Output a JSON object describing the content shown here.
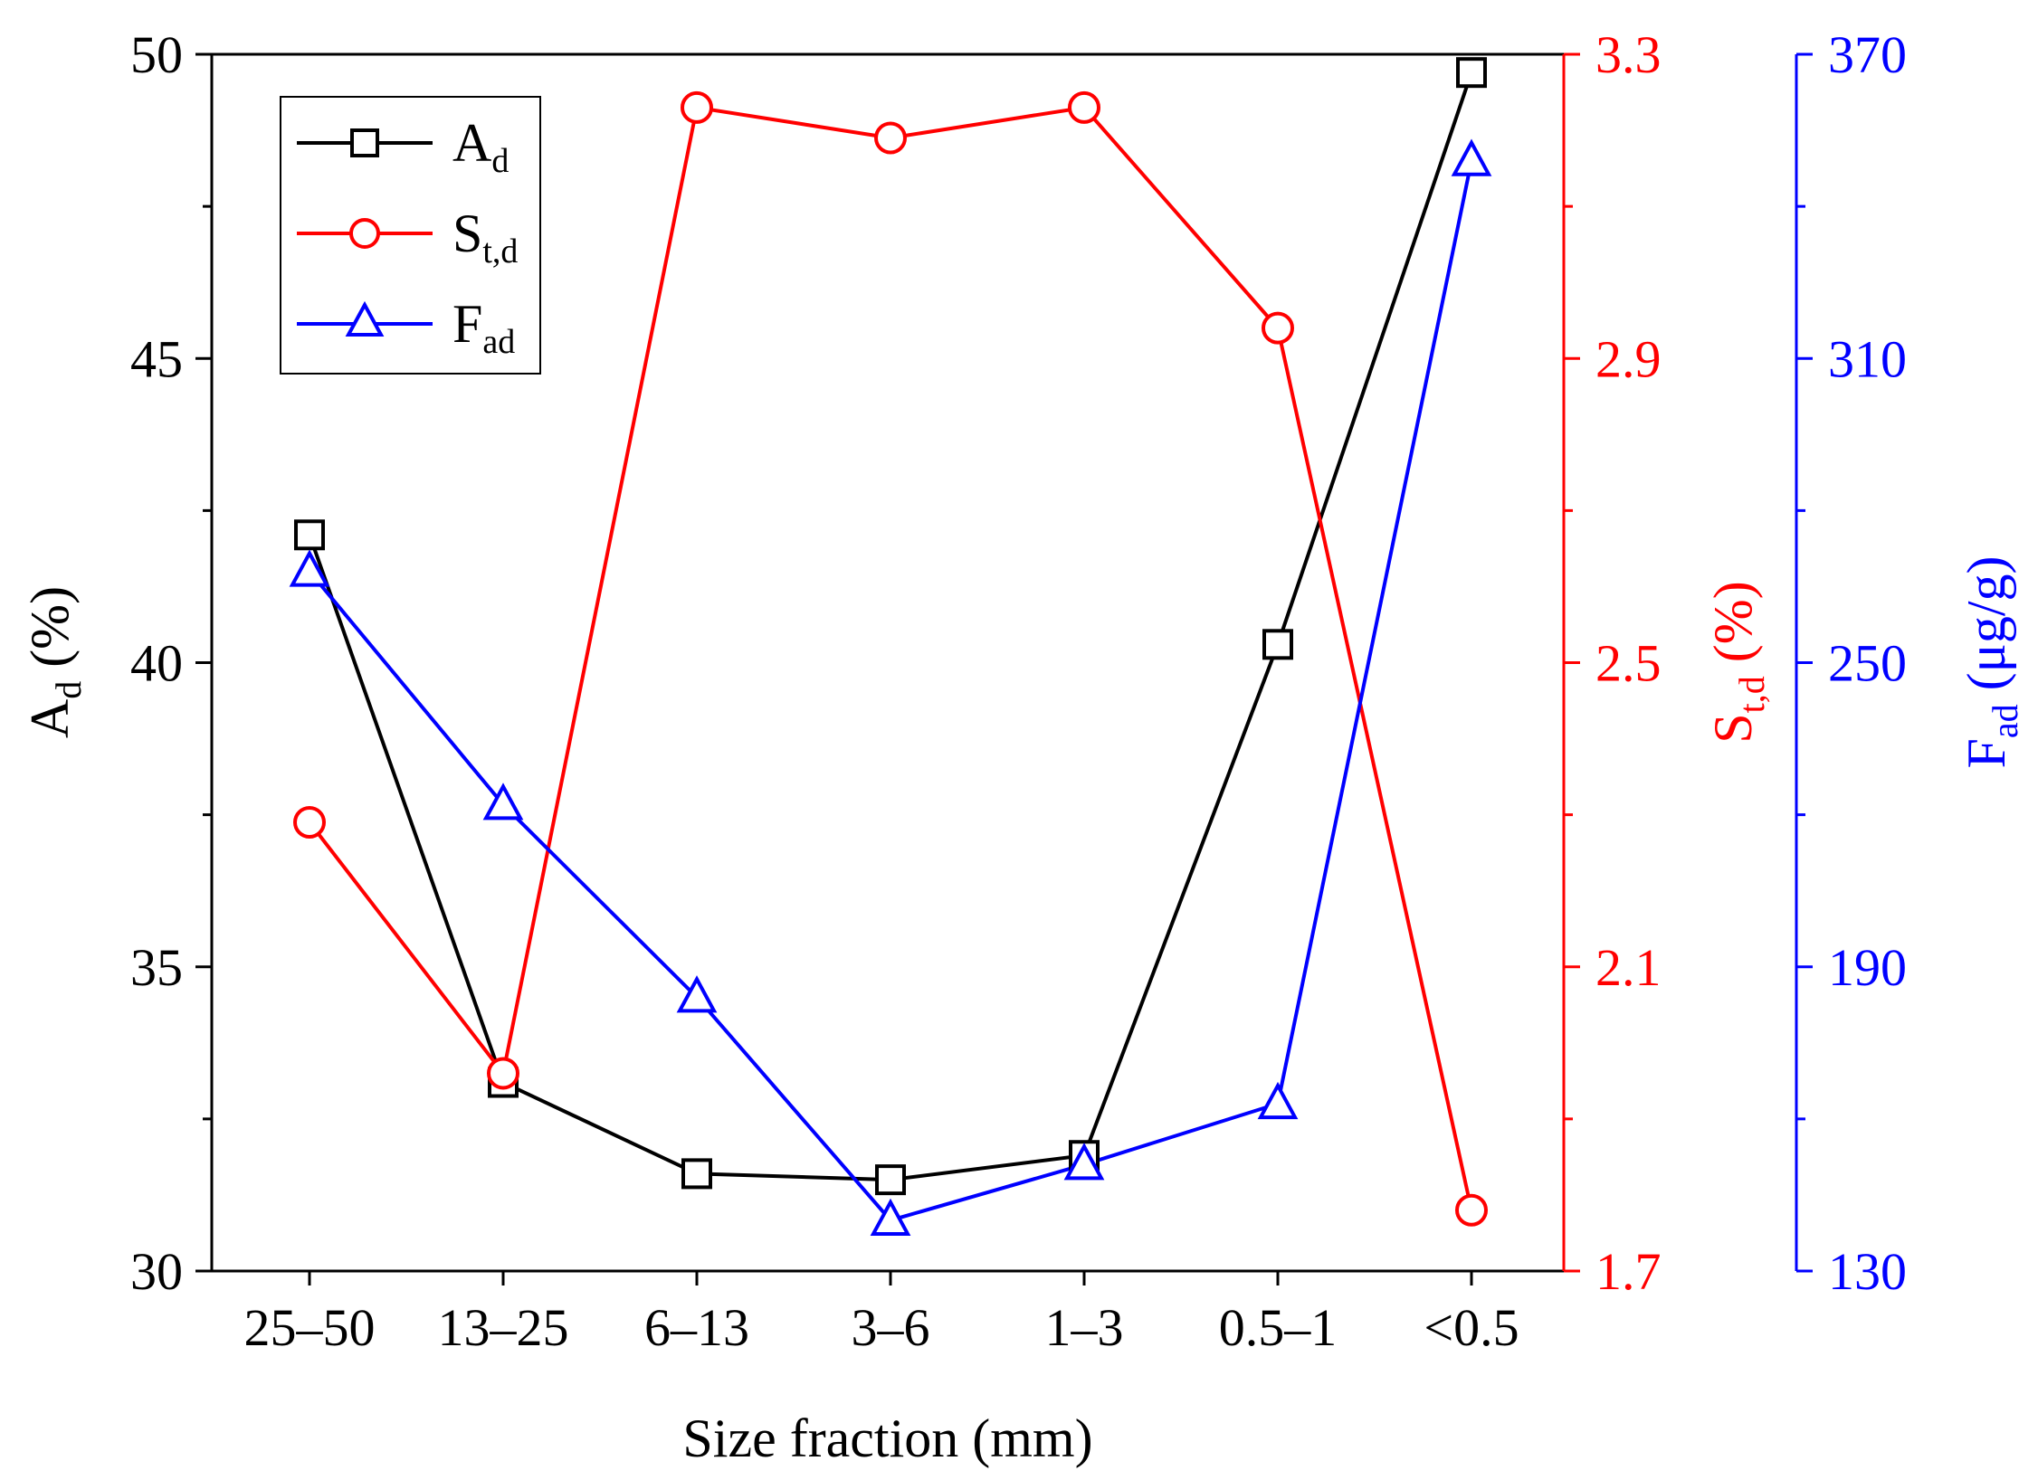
{
  "chart_data": {
    "type": "line",
    "xlabel": "Size fraction (mm)",
    "categories": [
      "25–50",
      "13–25",
      "6–13",
      "3–6",
      "1–3",
      "0.5–1",
      "<0.5"
    ],
    "axes": {
      "left": {
        "label_main": "A",
        "label_sub": "d",
        "label_unit": " (%)",
        "range": [
          30,
          50
        ],
        "ticks": [
          30,
          35,
          40,
          45,
          50
        ],
        "tick_labels": [
          "30",
          "35",
          "40",
          "45",
          "50"
        ],
        "color": "#000000"
      },
      "right1": {
        "label_main": "S",
        "label_sub": "t,d",
        "label_unit": " (%)",
        "range": [
          1.7,
          3.3
        ],
        "ticks": [
          1.7,
          2.1,
          2.5,
          2.9,
          3.3
        ],
        "tick_labels": [
          "1.7",
          "2.1",
          "2.5",
          "2.9",
          "3.3"
        ],
        "color": "#ff0000"
      },
      "right2": {
        "label_main": "F",
        "label_sub": "ad",
        "label_unit": " (μg/g)",
        "range": [
          130,
          370
        ],
        "ticks": [
          130,
          190,
          250,
          310,
          370
        ],
        "tick_labels": [
          "130",
          "190",
          "250",
          "310",
          "370"
        ],
        "color": "#0000ff"
      }
    },
    "series": [
      {
        "name_main": "A",
        "name_sub": "d",
        "axis": "left",
        "marker": "square",
        "color": "#000000",
        "values": [
          42.1,
          33.1,
          31.6,
          31.5,
          31.9,
          40.3,
          49.7
        ]
      },
      {
        "name_main": "S",
        "name_sub": "t,d",
        "axis": "right1",
        "marker": "circle",
        "color": "#ff0000",
        "values": [
          2.29,
          1.96,
          3.23,
          3.19,
          3.23,
          2.94,
          1.78
        ]
      },
      {
        "name_main": "F",
        "name_sub": "ad",
        "axis": "right2",
        "marker": "triangle",
        "color": "#0000ff",
        "values": [
          268,
          222,
          184,
          140,
          151,
          163,
          349
        ]
      }
    ],
    "legend": "top-left"
  }
}
